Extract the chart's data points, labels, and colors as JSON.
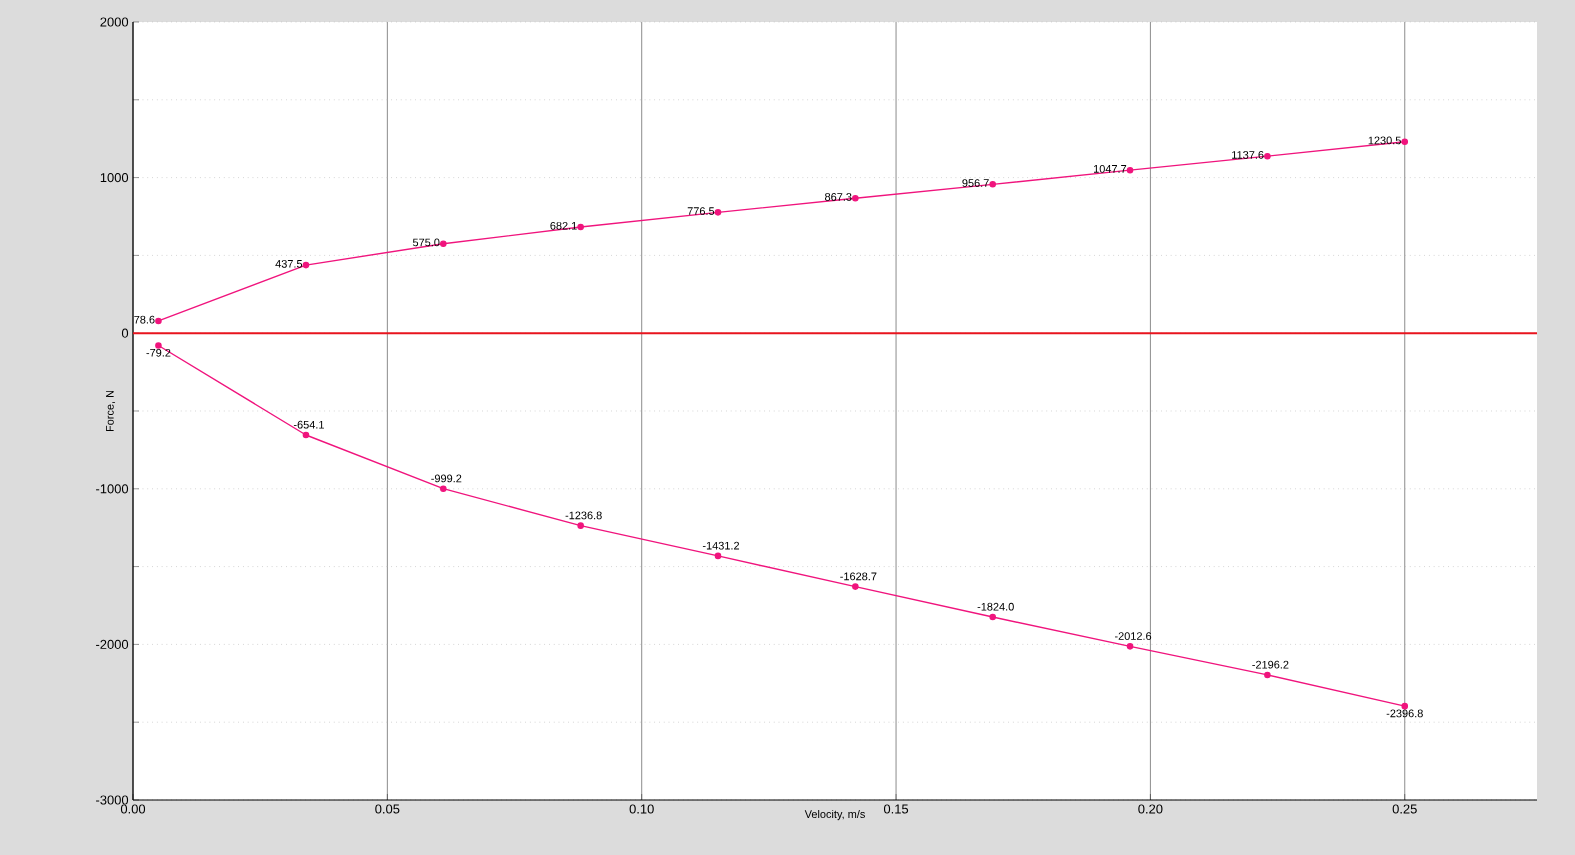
{
  "chart_data": {
    "type": "line",
    "xlabel": "Velocity, m/s",
    "ylabel": "Force, N",
    "x": [
      0.005,
      0.034,
      0.061,
      0.088,
      0.115,
      0.142,
      0.169,
      0.196,
      0.223,
      0.25
    ],
    "series": [
      {
        "color": "#f0147d",
        "values": [
          78.6,
          437.5,
          575.0,
          682.1,
          776.5,
          867.3,
          956.7,
          1047.7,
          1137.6,
          1230.5
        ],
        "value_labels": [
          "78.6",
          "437.5",
          "575.0",
          "682.1",
          "776.5",
          "867.3",
          "956.7",
          "1047.7",
          "1137.6",
          "1230.5"
        ]
      },
      {
        "color": "#f0147d",
        "values": [
          -79.2,
          -654.1,
          -999.2,
          -1236.8,
          -1431.2,
          -1628.7,
          -1824.0,
          -2012.6,
          -2196.2,
          -2396.8
        ],
        "value_labels": [
          "-79.2",
          "-654.1",
          "-999.2",
          "-1236.8",
          "-1431.2",
          "-1628.7",
          "-1824.0",
          "-2012.6",
          "-2196.2",
          "-2396.8"
        ]
      }
    ],
    "xlim": [
      0,
      0.276
    ],
    "xticks": [
      {
        "value": 0,
        "label": "0.00"
      },
      {
        "value": 0.05,
        "label": "0.05"
      },
      {
        "value": 0.1,
        "label": "0.10"
      },
      {
        "value": 0.15,
        "label": "0.15"
      },
      {
        "value": 0.2,
        "label": "0.20"
      },
      {
        "value": 0.25,
        "label": "0.25"
      }
    ],
    "ylim": [
      -3000,
      2000
    ],
    "yticks": [
      -3000,
      {
        "value": -2500,
        "label": null
      },
      -2000,
      {
        "value": -1500,
        "label": null
      },
      -1000,
      {
        "value": -500,
        "label": null
      },
      0,
      {
        "value": 500,
        "label": null
      },
      1000,
      {
        "value": 1500,
        "label": null
      },
      2000
    ],
    "ref_lines": [
      {
        "axis": "y",
        "value": 0,
        "color": "#e8141e"
      }
    ],
    "grid": true,
    "marker": "circle",
    "line_style": "solid"
  }
}
